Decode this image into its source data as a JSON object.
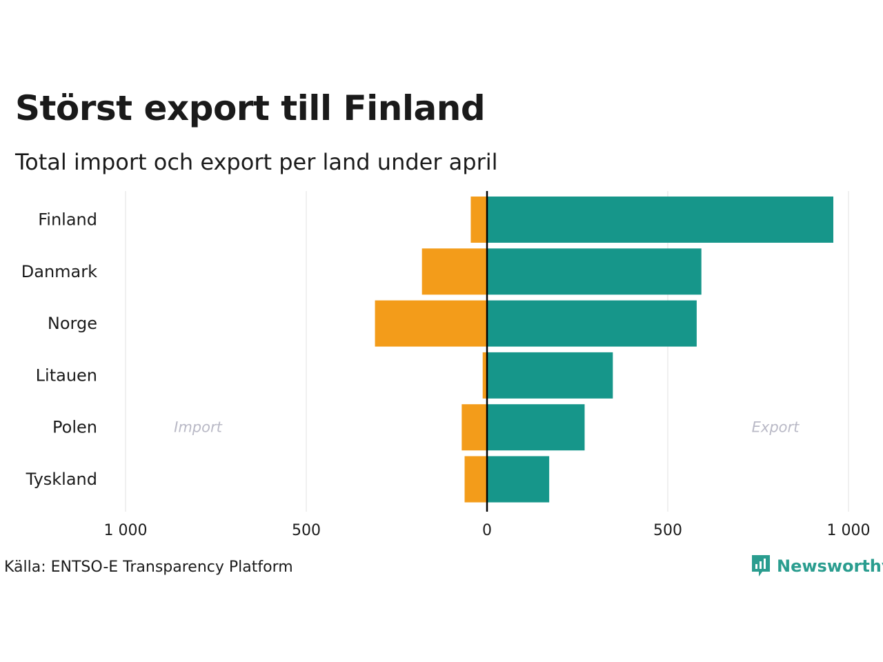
{
  "title": "Störst export till Finland",
  "subtitle": "Total import och export per land under april",
  "source": "Källa: ENTSO-E Transparency Platform",
  "brand": {
    "name": "Newsworthy",
    "icon": "bar-chart-bubble-icon"
  },
  "colors": {
    "import": "#f39c1a",
    "export": "#16968a",
    "grid": "#ebebeb",
    "axis": "#000000",
    "annotation": "#b9b9c6"
  },
  "chart_data": {
    "type": "bar",
    "orientation": "horizontal-diverging",
    "categories": [
      "Finland",
      "Danmark",
      "Norge",
      "Litauen",
      "Polen",
      "Tyskland"
    ],
    "series": [
      {
        "name": "Import",
        "values": [
          -45,
          -180,
          -310,
          -12,
          -70,
          -62
        ]
      },
      {
        "name": "Export",
        "values": [
          958,
          593,
          580,
          348,
          270,
          172
        ]
      }
    ],
    "xlim": [
      -1000,
      1000
    ],
    "xticks": [
      -1000,
      -500,
      0,
      500,
      1000
    ],
    "xtick_labels": [
      "1 000",
      "500",
      "0",
      "500",
      "1 000"
    ],
    "annotations": {
      "import": "Import",
      "export": "Export"
    },
    "grid": true
  }
}
